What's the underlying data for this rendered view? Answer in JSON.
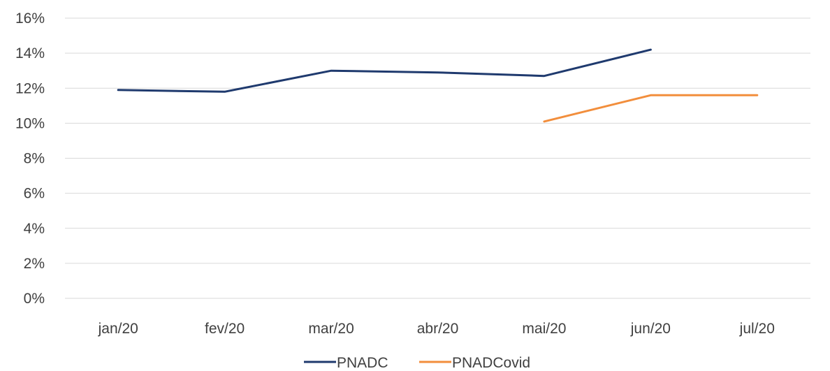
{
  "chart_data": {
    "type": "line",
    "categories": [
      "jan/20",
      "fev/20",
      "mar/20",
      "abr/20",
      "mai/20",
      "jun/20",
      "jul/20"
    ],
    "yticks": [
      "0%",
      "2%",
      "4%",
      "6%",
      "8%",
      "10%",
      "12%",
      "14%",
      "16%"
    ],
    "ylim": [
      0,
      16
    ],
    "grid": true,
    "legend_position": "bottom",
    "series": [
      {
        "name": "PNADC",
        "color": "#1f3a6e",
        "values": [
          11.9,
          11.8,
          13.0,
          12.9,
          12.7,
          14.2,
          null
        ]
      },
      {
        "name": "PNADCovid",
        "color": "#f28e3c",
        "values": [
          null,
          null,
          null,
          null,
          10.1,
          11.6,
          11.6
        ]
      }
    ]
  }
}
